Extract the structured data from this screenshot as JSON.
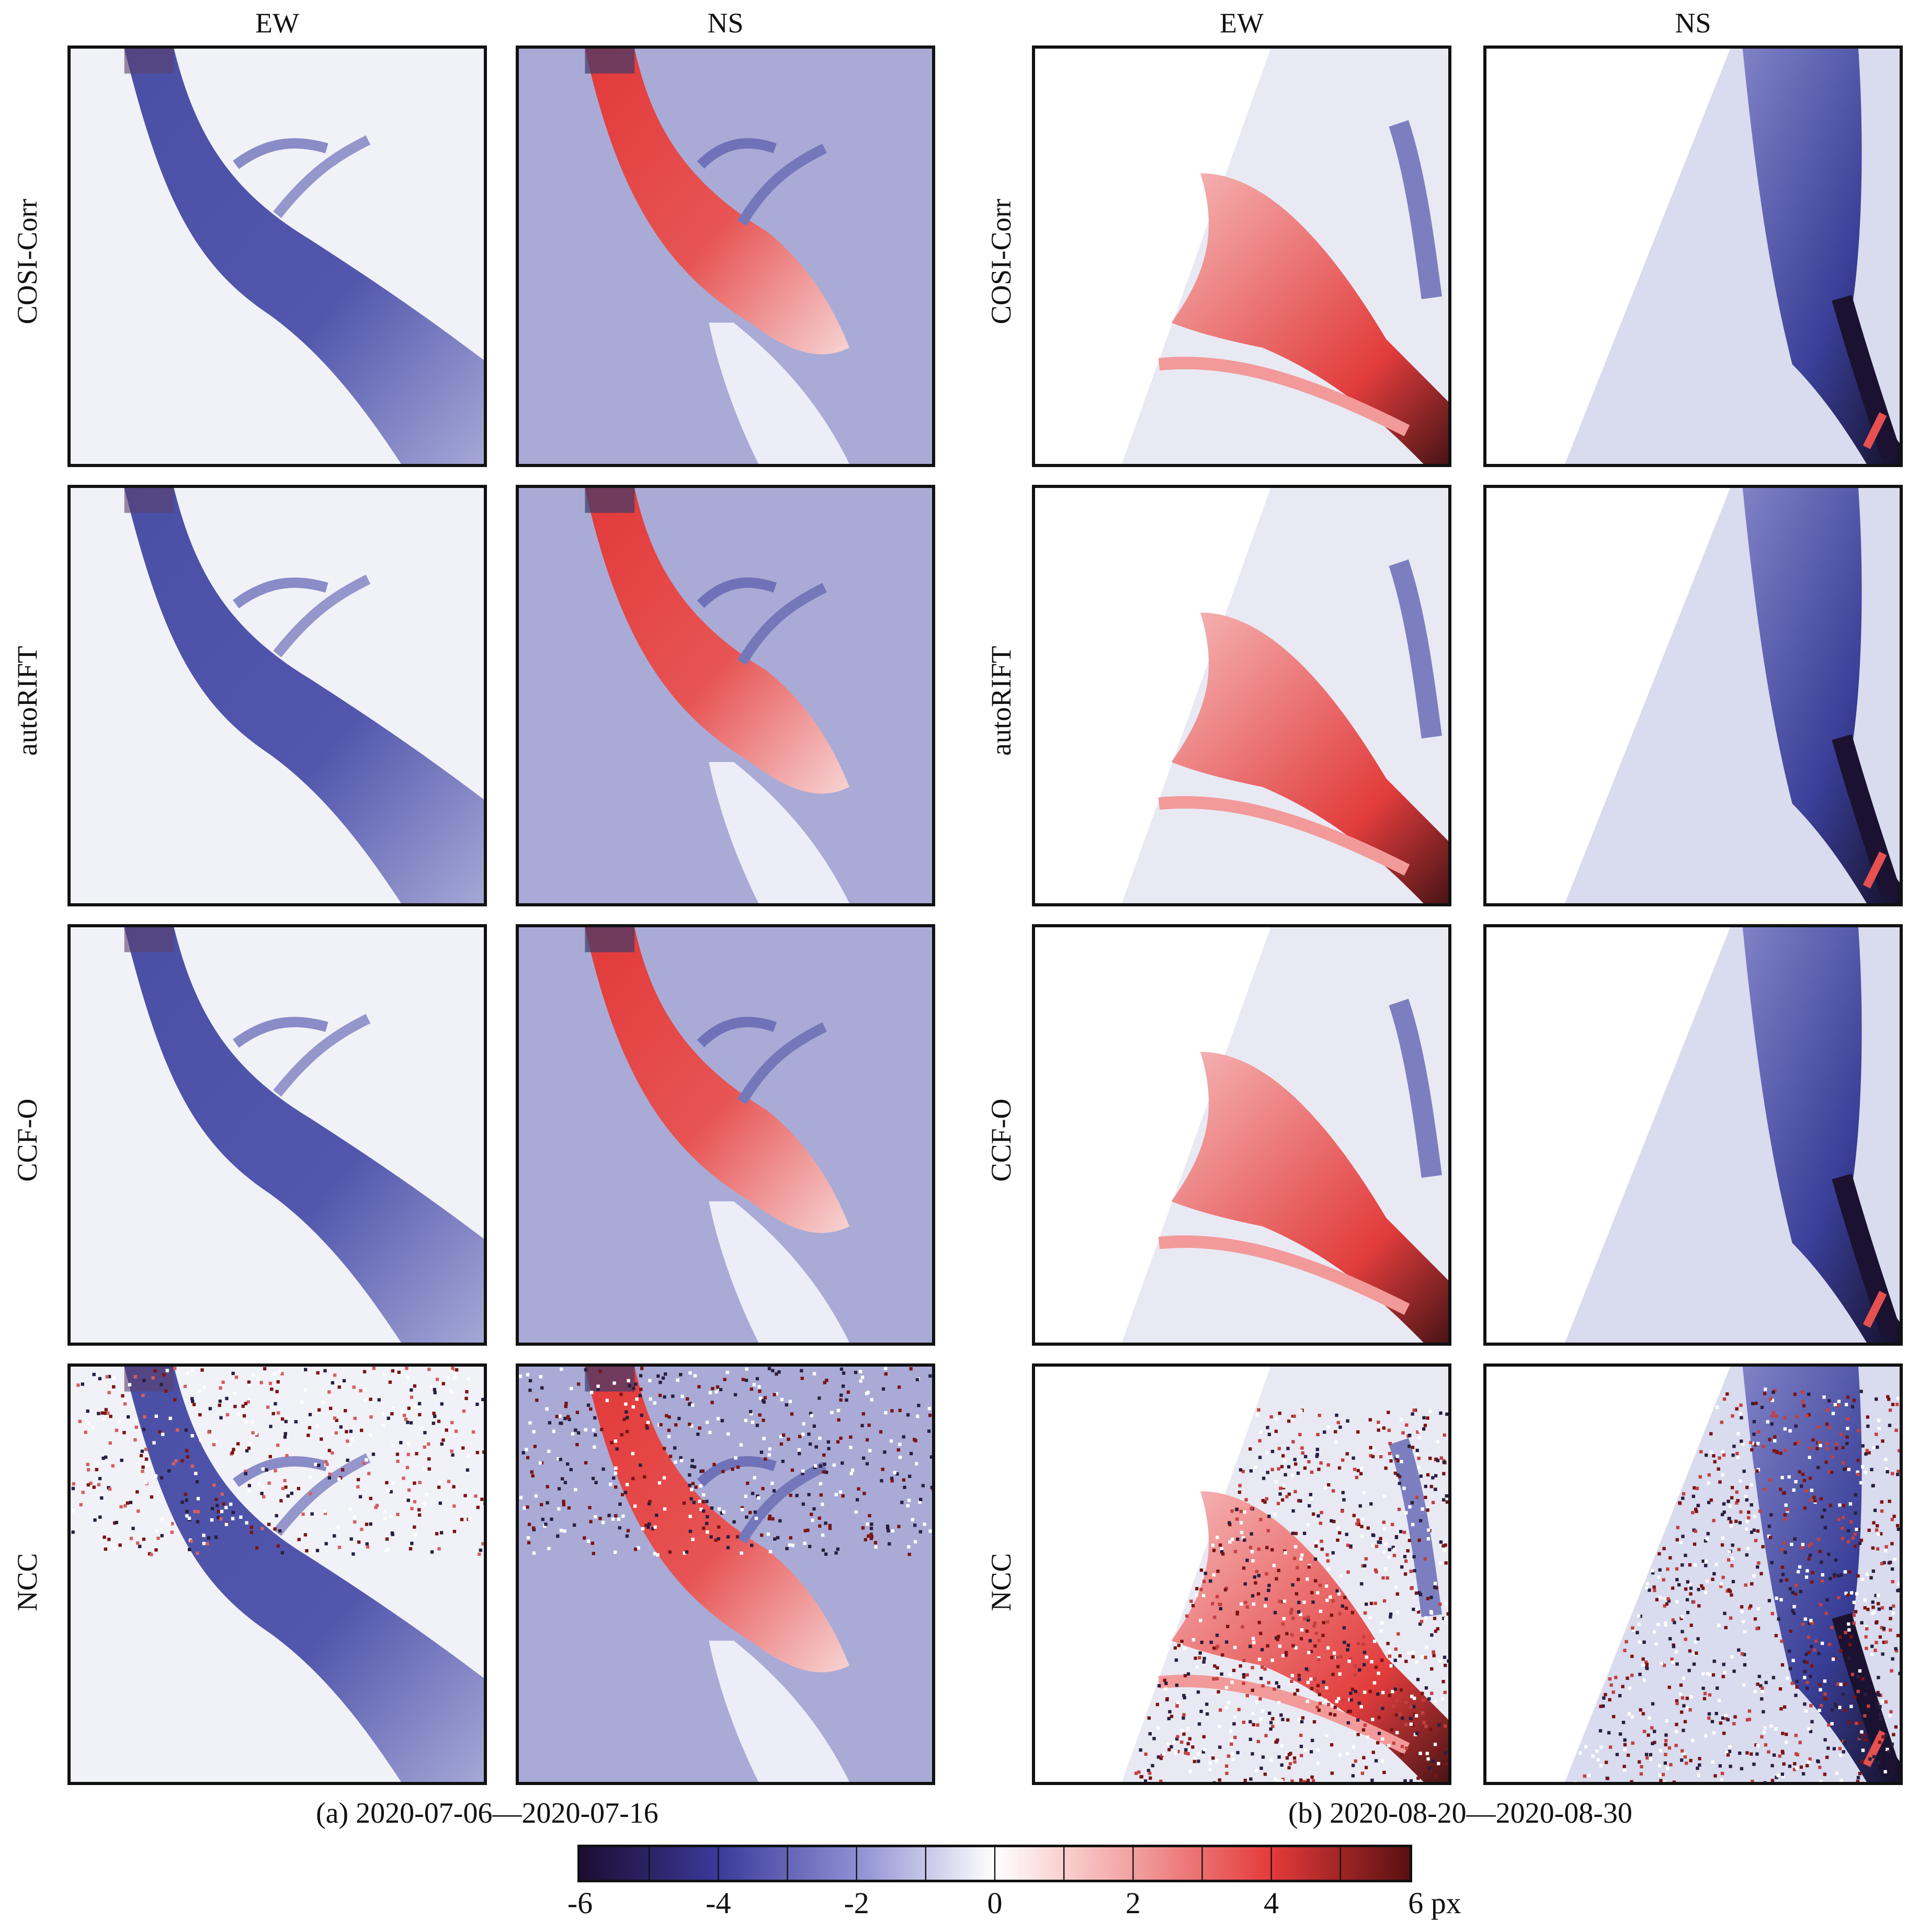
{
  "column_headers": [
    "EW",
    "NS",
    "EW",
    "NS"
  ],
  "row_labels": [
    "COSI-Corr",
    "autoRIFT",
    "CCF-O",
    "NCC"
  ],
  "captions": {
    "a": "(a) 2020-07-06—2020-07-16",
    "b": "(b) 2020-08-20—2020-08-30"
  },
  "colorbar": {
    "ticks": [
      "-6",
      "-4",
      "-2",
      "0",
      "2",
      "4",
      "6 px"
    ],
    "range": [
      -6,
      6
    ],
    "stops": [
      "#1d0c30",
      "#3a3a9a",
      "#8d8fd2",
      "#ffffff",
      "#f2a0a0",
      "#e53a3a",
      "#5a1012"
    ]
  }
}
